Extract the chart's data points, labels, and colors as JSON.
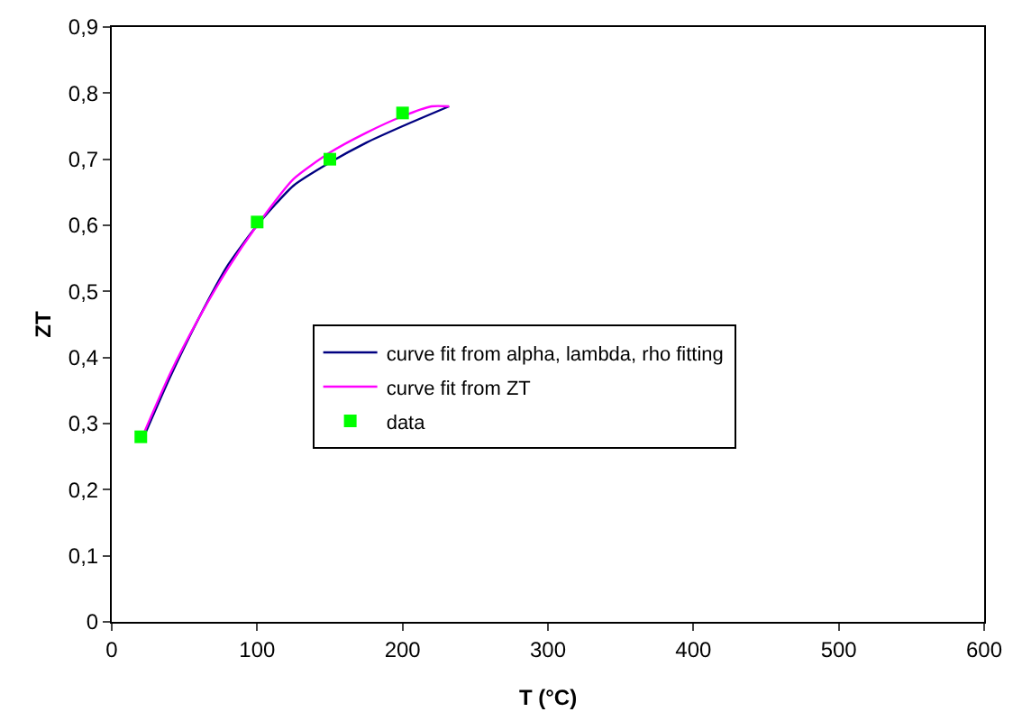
{
  "chart_data": {
    "type": "line",
    "xlabel": "T (°C)",
    "ylabel": "ZT",
    "xlim": [
      0,
      600
    ],
    "xticks": [
      0,
      100,
      200,
      300,
      400,
      500,
      600
    ],
    "ylim": [
      0,
      0.9
    ],
    "yticks": [
      {
        "value": 0,
        "label": "0"
      },
      {
        "value": 0.1,
        "label": "0,1"
      },
      {
        "value": 0.2,
        "label": "0,2"
      },
      {
        "value": 0.3,
        "label": "0,3"
      },
      {
        "value": 0.4,
        "label": "0,4"
      },
      {
        "value": 0.5,
        "label": "0,5"
      },
      {
        "value": 0.6,
        "label": "0,6"
      },
      {
        "value": 0.7,
        "label": "0,7"
      },
      {
        "value": 0.8,
        "label": "0,8"
      },
      {
        "value": 0.9,
        "label": "0,9"
      }
    ],
    "grid": false,
    "legend": "center",
    "series": [
      {
        "name": "curve fit from alpha, lambda, rho fitting",
        "marker": "none",
        "line_style": "solid",
        "color": "#000080",
        "x": [
          22,
          40,
          60,
          80,
          100,
          125,
          150,
          175,
          200,
          232
        ],
        "values": [
          0.28,
          0.37,
          0.46,
          0.54,
          0.6,
          0.66,
          0.695,
          0.725,
          0.75,
          0.78
        ]
      },
      {
        "name": "curve fit from ZT",
        "marker": "none",
        "line_style": "solid",
        "color": "#ff00ff",
        "x": [
          22,
          40,
          60,
          80,
          100,
          125,
          150,
          175,
          200,
          220,
          232
        ],
        "values": [
          0.285,
          0.375,
          0.46,
          0.535,
          0.6,
          0.67,
          0.71,
          0.74,
          0.765,
          0.78,
          0.78
        ]
      },
      {
        "name": "data",
        "type": "scatter",
        "marker": "square",
        "color": "#00ff00",
        "x": [
          20,
          100,
          150,
          200
        ],
        "values": [
          0.28,
          0.605,
          0.7,
          0.77
        ]
      }
    ]
  }
}
